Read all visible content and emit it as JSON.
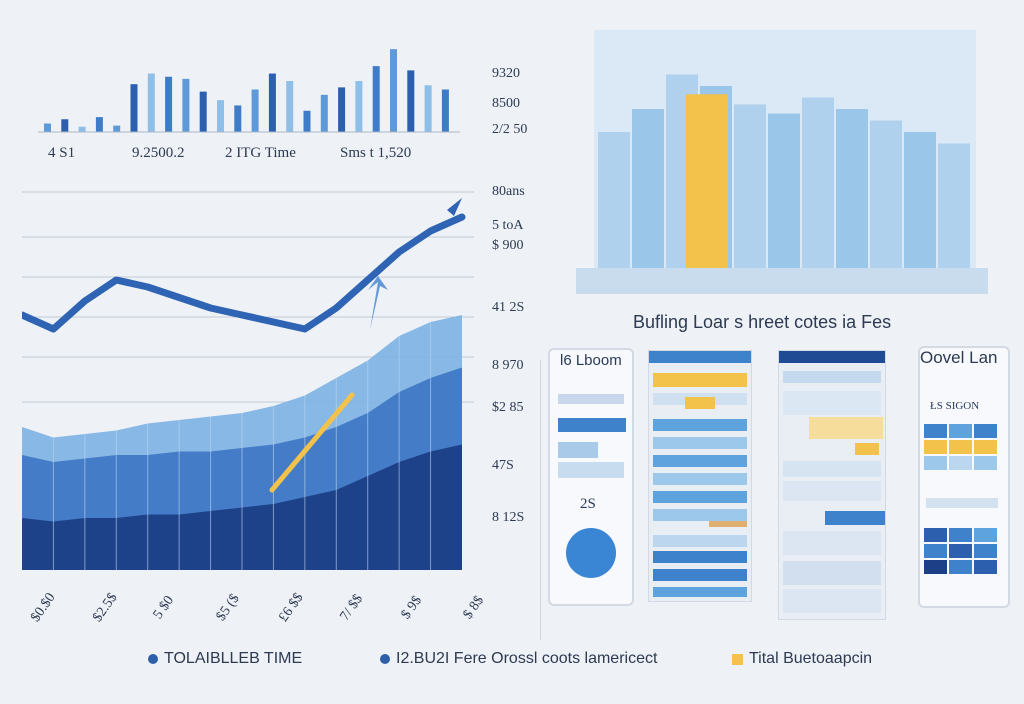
{
  "top_bar_chart": {
    "labels": [
      "4 S1",
      "9.2500.2",
      "2 ITG Time",
      "Sms t 1,520"
    ],
    "values": [
      8,
      12,
      5,
      14,
      6,
      45,
      55,
      52,
      50,
      38,
      30,
      25,
      40,
      55,
      48,
      20,
      35,
      42,
      48,
      62,
      78,
      58,
      44,
      40
    ]
  },
  "y_ticks": [
    "9320",
    "8500",
    "2/2 50",
    "80ans",
    "5 toA",
    "$ 900",
    "41 2S",
    "8 970",
    "$2 85",
    "47S",
    "8 12S"
  ],
  "chart_data": {
    "type": "area",
    "series": [
      {
        "values": [
          38,
          35,
          36,
          37,
          39,
          40,
          41,
          42,
          44,
          47,
          52,
          57,
          64,
          68,
          70
        ]
      },
      {
        "values": [
          30,
          28,
          29,
          30,
          30,
          31,
          31,
          32,
          33,
          35,
          38,
          42,
          48,
          52,
          55
        ]
      },
      {
        "values": [
          12,
          11,
          12,
          12,
          13,
          13,
          14,
          15,
          16,
          18,
          20,
          24,
          28,
          31,
          33
        ]
      }
    ],
    "line": [
      70,
      66,
      74,
      80,
      78,
      75,
      72,
      70,
      68,
      66,
      72,
      80,
      88,
      94,
      98
    ],
    "x_ticks": [
      "$0.$0",
      "$2.5$",
      "5 $0",
      "$5 ($",
      "£6 $$",
      "7/ $$",
      "$ 9$",
      "$ 8$"
    ]
  },
  "right_chart": {
    "values": [
      60,
      70,
      85,
      80,
      72,
      68,
      75,
      70,
      65,
      60,
      55
    ],
    "highlight": 95
  },
  "dashboard_title": "Bufling Loar s hreet cotes ia Fes",
  "dashboard": {
    "left_title": "l6 Lboom",
    "left_value": "2S",
    "right_title": "Oovel Lan",
    "right_sub": "ŁS SIGON"
  },
  "legend": [
    {
      "label": "TOLAIBLLEB TIME",
      "color": "#2e5fa8"
    },
    {
      "label": "I2.BU2I Fere Orossl coots lamericect",
      "color": "#2e5fa8"
    },
    {
      "label": "Tital Buetoaapcin",
      "color": "#f2c24a"
    }
  ],
  "colors": {
    "dark": "#1d3f87",
    "mid": "#3e75c2",
    "light": "#8fbfe6",
    "accent": "#f2c24a"
  }
}
